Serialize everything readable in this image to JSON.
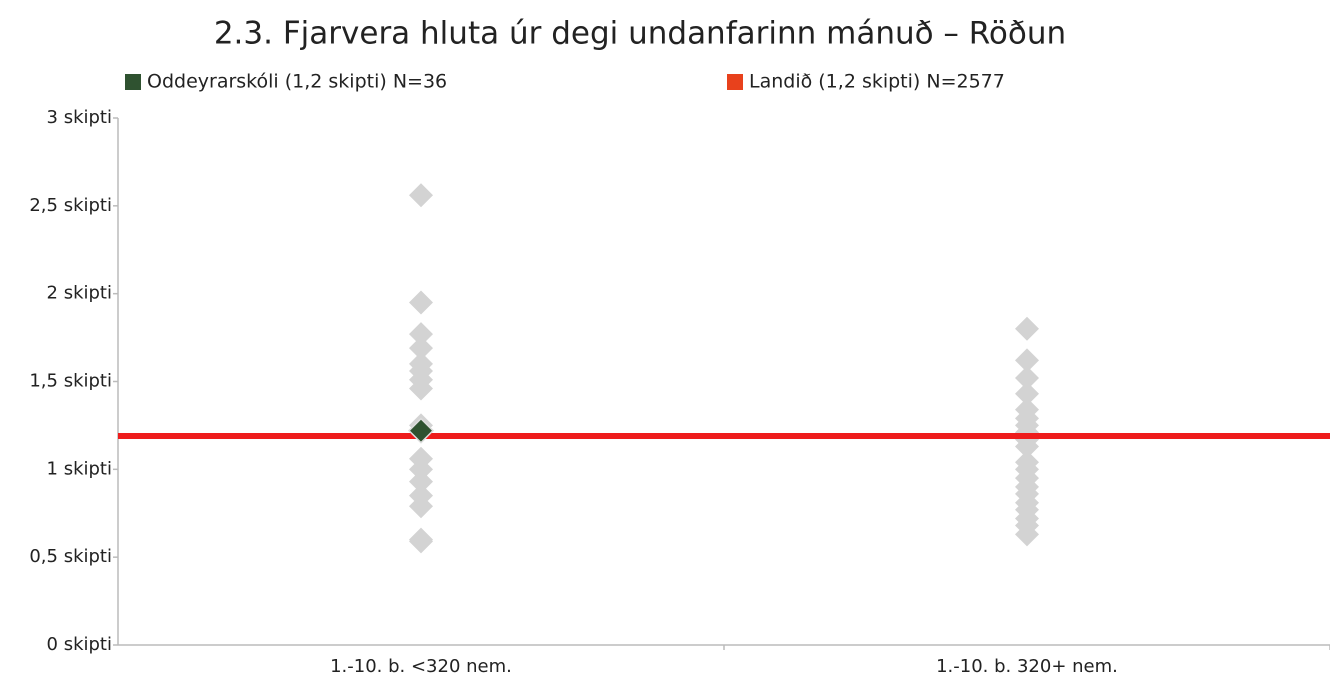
{
  "chart_data": {
    "type": "strip",
    "title": "2.3. Fjarvera hluta úr degi undanfarinn mánuð – Röðun",
    "categories": [
      "1.-10. b. <320 nem.",
      "1.-10. b. 320+ nem."
    ],
    "background_points": {
      "color": "#d3d3d3",
      "values": [
        [
          2.56,
          1.95,
          1.77,
          1.69,
          1.6,
          1.56,
          1.51,
          1.46,
          1.25,
          1.06,
          1.0,
          0.93,
          0.85,
          0.79,
          0.6,
          0.59
        ],
        [
          1.8,
          1.62,
          1.52,
          1.43,
          1.34,
          1.29,
          1.25,
          1.21,
          1.17,
          1.13,
          1.04,
          1.0,
          0.95,
          0.9,
          0.86,
          0.81,
          0.77,
          0.72,
          0.68,
          0.63
        ]
      ]
    },
    "series": [
      {
        "name": "Oddeyrarskóli (1,2 skipti) N=36",
        "color": "#2f5230",
        "values": [
          1.22,
          null
        ]
      }
    ],
    "reference_line": {
      "name": "Landið (1,2 skipti) N=2577",
      "color": "#ee1c1c",
      "legend_color": "#e8411c",
      "value": 1.19
    },
    "ylim": [
      0,
      3
    ],
    "yticks": [
      {
        "value": 0,
        "label": "0 skipti"
      },
      {
        "value": 0.5,
        "label": "0,5 skipti"
      },
      {
        "value": 1,
        "label": "1 skipti"
      },
      {
        "value": 1.5,
        "label": "1,5 skipti"
      },
      {
        "value": 2,
        "label": "2 skipti"
      },
      {
        "value": 2.5,
        "label": "2,5 skipti"
      },
      {
        "value": 3,
        "label": "3 skipti"
      }
    ]
  }
}
